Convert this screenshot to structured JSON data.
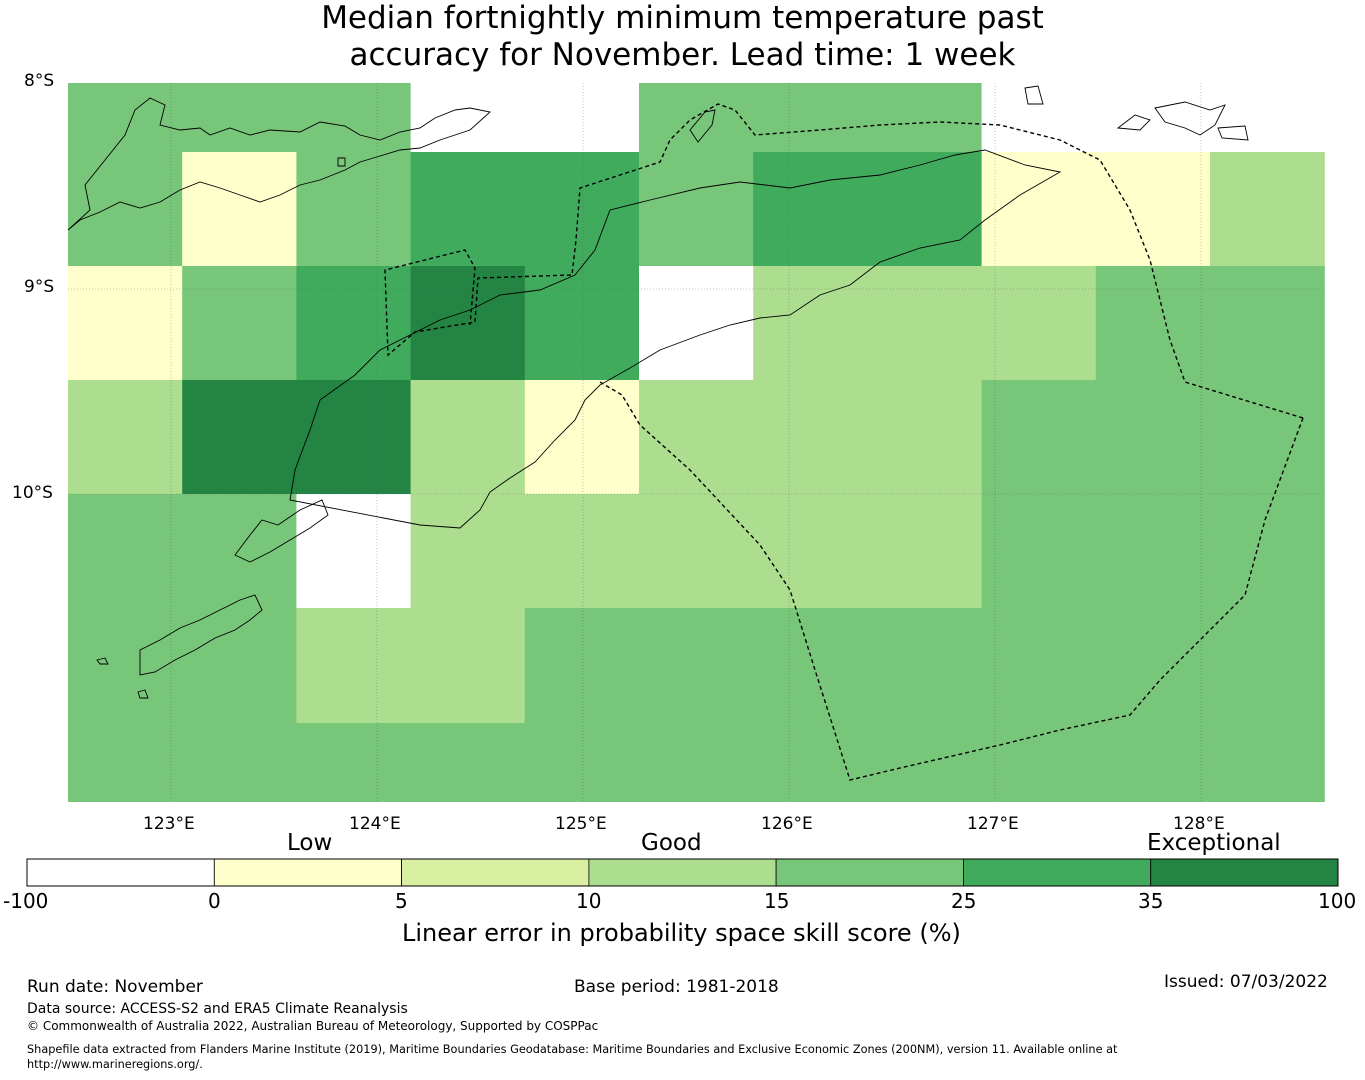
{
  "title": {
    "line1": "Median fortnightly minimum temperature past",
    "line2": "accuracy for November. Lead time: 1 week"
  },
  "map": {
    "lat_labels": [
      "8°S",
      "9°S",
      "10°S"
    ],
    "lon_labels": [
      "123°E",
      "124°E",
      "125°E",
      "126°E",
      "127°E",
      "128°E"
    ],
    "grid_rows": [
      [
        "15-25",
        "15-25",
        "15-25",
        "-100-0",
        "-100-0",
        "15-25",
        "15-25",
        "15-25",
        "-100-0",
        "-100-0",
        "-100-0"
      ],
      [
        "15-25",
        "0-5",
        "15-25",
        "25-35",
        "25-35",
        "15-25",
        "25-35",
        "25-35",
        "0-5",
        "0-5",
        "10-15"
      ],
      [
        "0-5",
        "15-25",
        "25-35",
        "35-100",
        "25-35",
        "-100-0",
        "10-15",
        "10-15",
        "10-15",
        "15-25",
        "15-25"
      ],
      [
        "10-15",
        "35-100",
        "35-100",
        "10-15",
        "0-5",
        "10-15",
        "10-15",
        "10-15",
        "15-25",
        "15-25",
        "15-25"
      ],
      [
        "15-25",
        "15-25",
        "-100-0",
        "10-15",
        "10-15",
        "10-15",
        "10-15",
        "10-15",
        "15-25",
        "15-25",
        "15-25"
      ],
      [
        "15-25",
        "15-25",
        "10-15",
        "10-15",
        "15-25",
        "15-25",
        "15-25",
        "15-25",
        "15-25",
        "15-25",
        "15-25"
      ],
      [
        "15-25",
        "15-25",
        "15-25",
        "15-25",
        "15-25",
        "15-25",
        "15-25",
        "15-25",
        "15-25",
        "15-25",
        "15-25"
      ]
    ]
  },
  "legend": {
    "categories": [
      "Low",
      "Good",
      "Exceptional"
    ],
    "ticks": [
      "-100",
      "0",
      "5",
      "10",
      "15",
      "25",
      "35",
      "100"
    ],
    "colors": [
      "#ffffff",
      "#ffffcc",
      "#d9f0a3",
      "#addd8e",
      "#78c679",
      "#41ab5d",
      "#238443"
    ],
    "label": "Linear error in probability space skill score (%)"
  },
  "footer": {
    "run_date": "Run date: November",
    "base_period": "Base period: 1981-2018",
    "issued": "Issued: 07/03/2022",
    "data_source": "Data source: ACCESS-S2 and ERA5 Climate Reanalysis",
    "copyright": "© Commonwealth of Australia 2022, Australian Bureau of Meteorology, Supported by COSPPac",
    "shapefile_line1": "Shapefile data extracted from Flanders Marine Institute (2019), Maritime Boundaries Geodatabase: Maritime Boundaries and Exclusive Economic Zones (200NM), version 11. Available online at",
    "shapefile_line2": "http://www.marineregions.org/."
  }
}
